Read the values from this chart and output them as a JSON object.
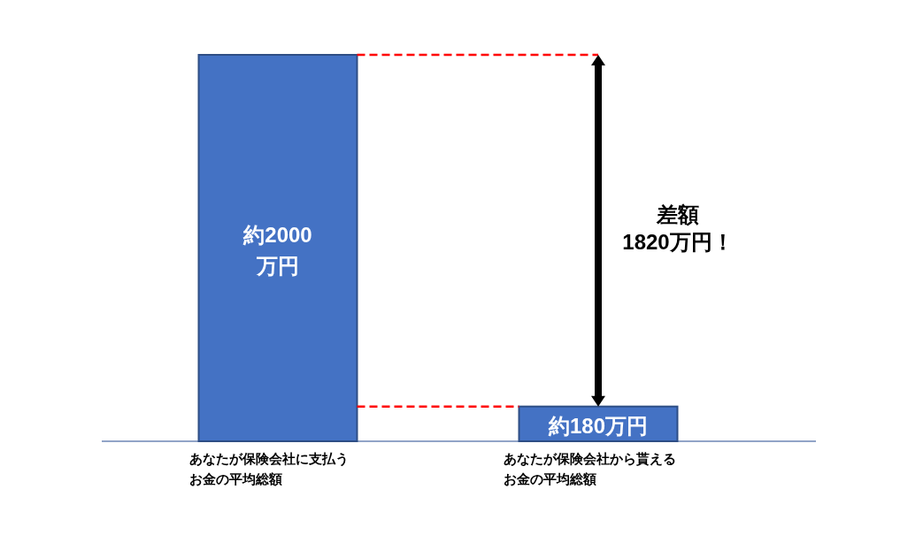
{
  "chart_data": {
    "type": "bar",
    "categories": [
      "あなたが保険会社に支払うお金の平均総額",
      "あなたが保険会社から貰えるお金の平均総額"
    ],
    "values": [
      2000,
      180
    ],
    "color": "#4472c4",
    "value_labels": [
      "約2000\n万円",
      "約180万円"
    ],
    "ref_lines": [
      {
        "axis": "y",
        "value": 2000,
        "color": "#ff0000",
        "line_style": "dashed"
      },
      {
        "axis": "y",
        "value": 180,
        "color": "#ff0000",
        "line_style": "dashed"
      }
    ],
    "annotations": [
      "差額\n1820万円！"
    ]
  }
}
